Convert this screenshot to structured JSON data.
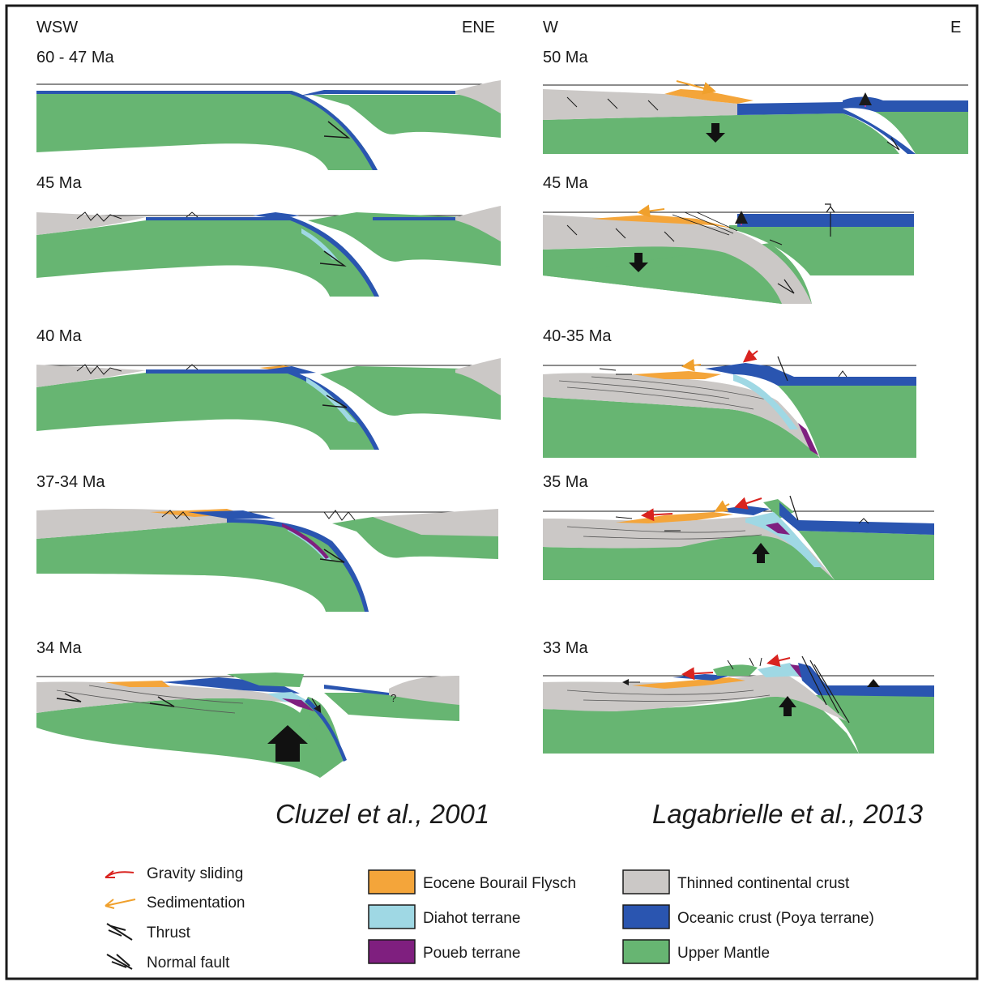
{
  "colors": {
    "flysch": "#f4a53a",
    "diahot": "#9fd8e4",
    "poueb": "#7f1f7f",
    "continental": "#cbc8c6",
    "oceanic": "#2a55b0",
    "mantle": "#67b572",
    "gravity": "#d9231f",
    "sedimentation": "#f0a02c",
    "fault": "#1a1a1a"
  },
  "left_column": {
    "direction_left": "WSW",
    "direction_right": "ENE",
    "panels": [
      {
        "age": "60 - 47 Ma"
      },
      {
        "age": "45 Ma"
      },
      {
        "age": "40 Ma"
      },
      {
        "age": "37-34 Ma"
      },
      {
        "age": "34 Ma",
        "note": "?"
      }
    ],
    "citation": "Cluzel et al., 2001"
  },
  "right_column": {
    "direction_left": "W",
    "direction_right": "E",
    "panels": [
      {
        "age": "50 Ma"
      },
      {
        "age": "45 Ma"
      },
      {
        "age": "40-35 Ma"
      },
      {
        "age": "35 Ma"
      },
      {
        "age": "33 Ma"
      }
    ],
    "citation": "Lagabrielle et al., 2013"
  },
  "legend": {
    "symbols": [
      {
        "label": "Gravity sliding",
        "icon": "red-arrow-icon"
      },
      {
        "label": "Sedimentation",
        "icon": "orange-arrow-icon"
      },
      {
        "label": "Thrust",
        "icon": "thrust-icon"
      },
      {
        "label": "Normal fault",
        "icon": "normal-fault-icon"
      }
    ],
    "units": [
      {
        "label": "Eocene Bourail Flysch",
        "color_key": "flysch"
      },
      {
        "label": "Diahot terrane",
        "color_key": "diahot"
      },
      {
        "label": "Poueb terrane",
        "color_key": "poueb"
      },
      {
        "label": "Thinned continental crust",
        "color_key": "continental"
      },
      {
        "label": "Oceanic crust (Poya terrane)",
        "color_key": "oceanic"
      },
      {
        "label": "Upper Mantle",
        "color_key": "mantle"
      }
    ]
  }
}
